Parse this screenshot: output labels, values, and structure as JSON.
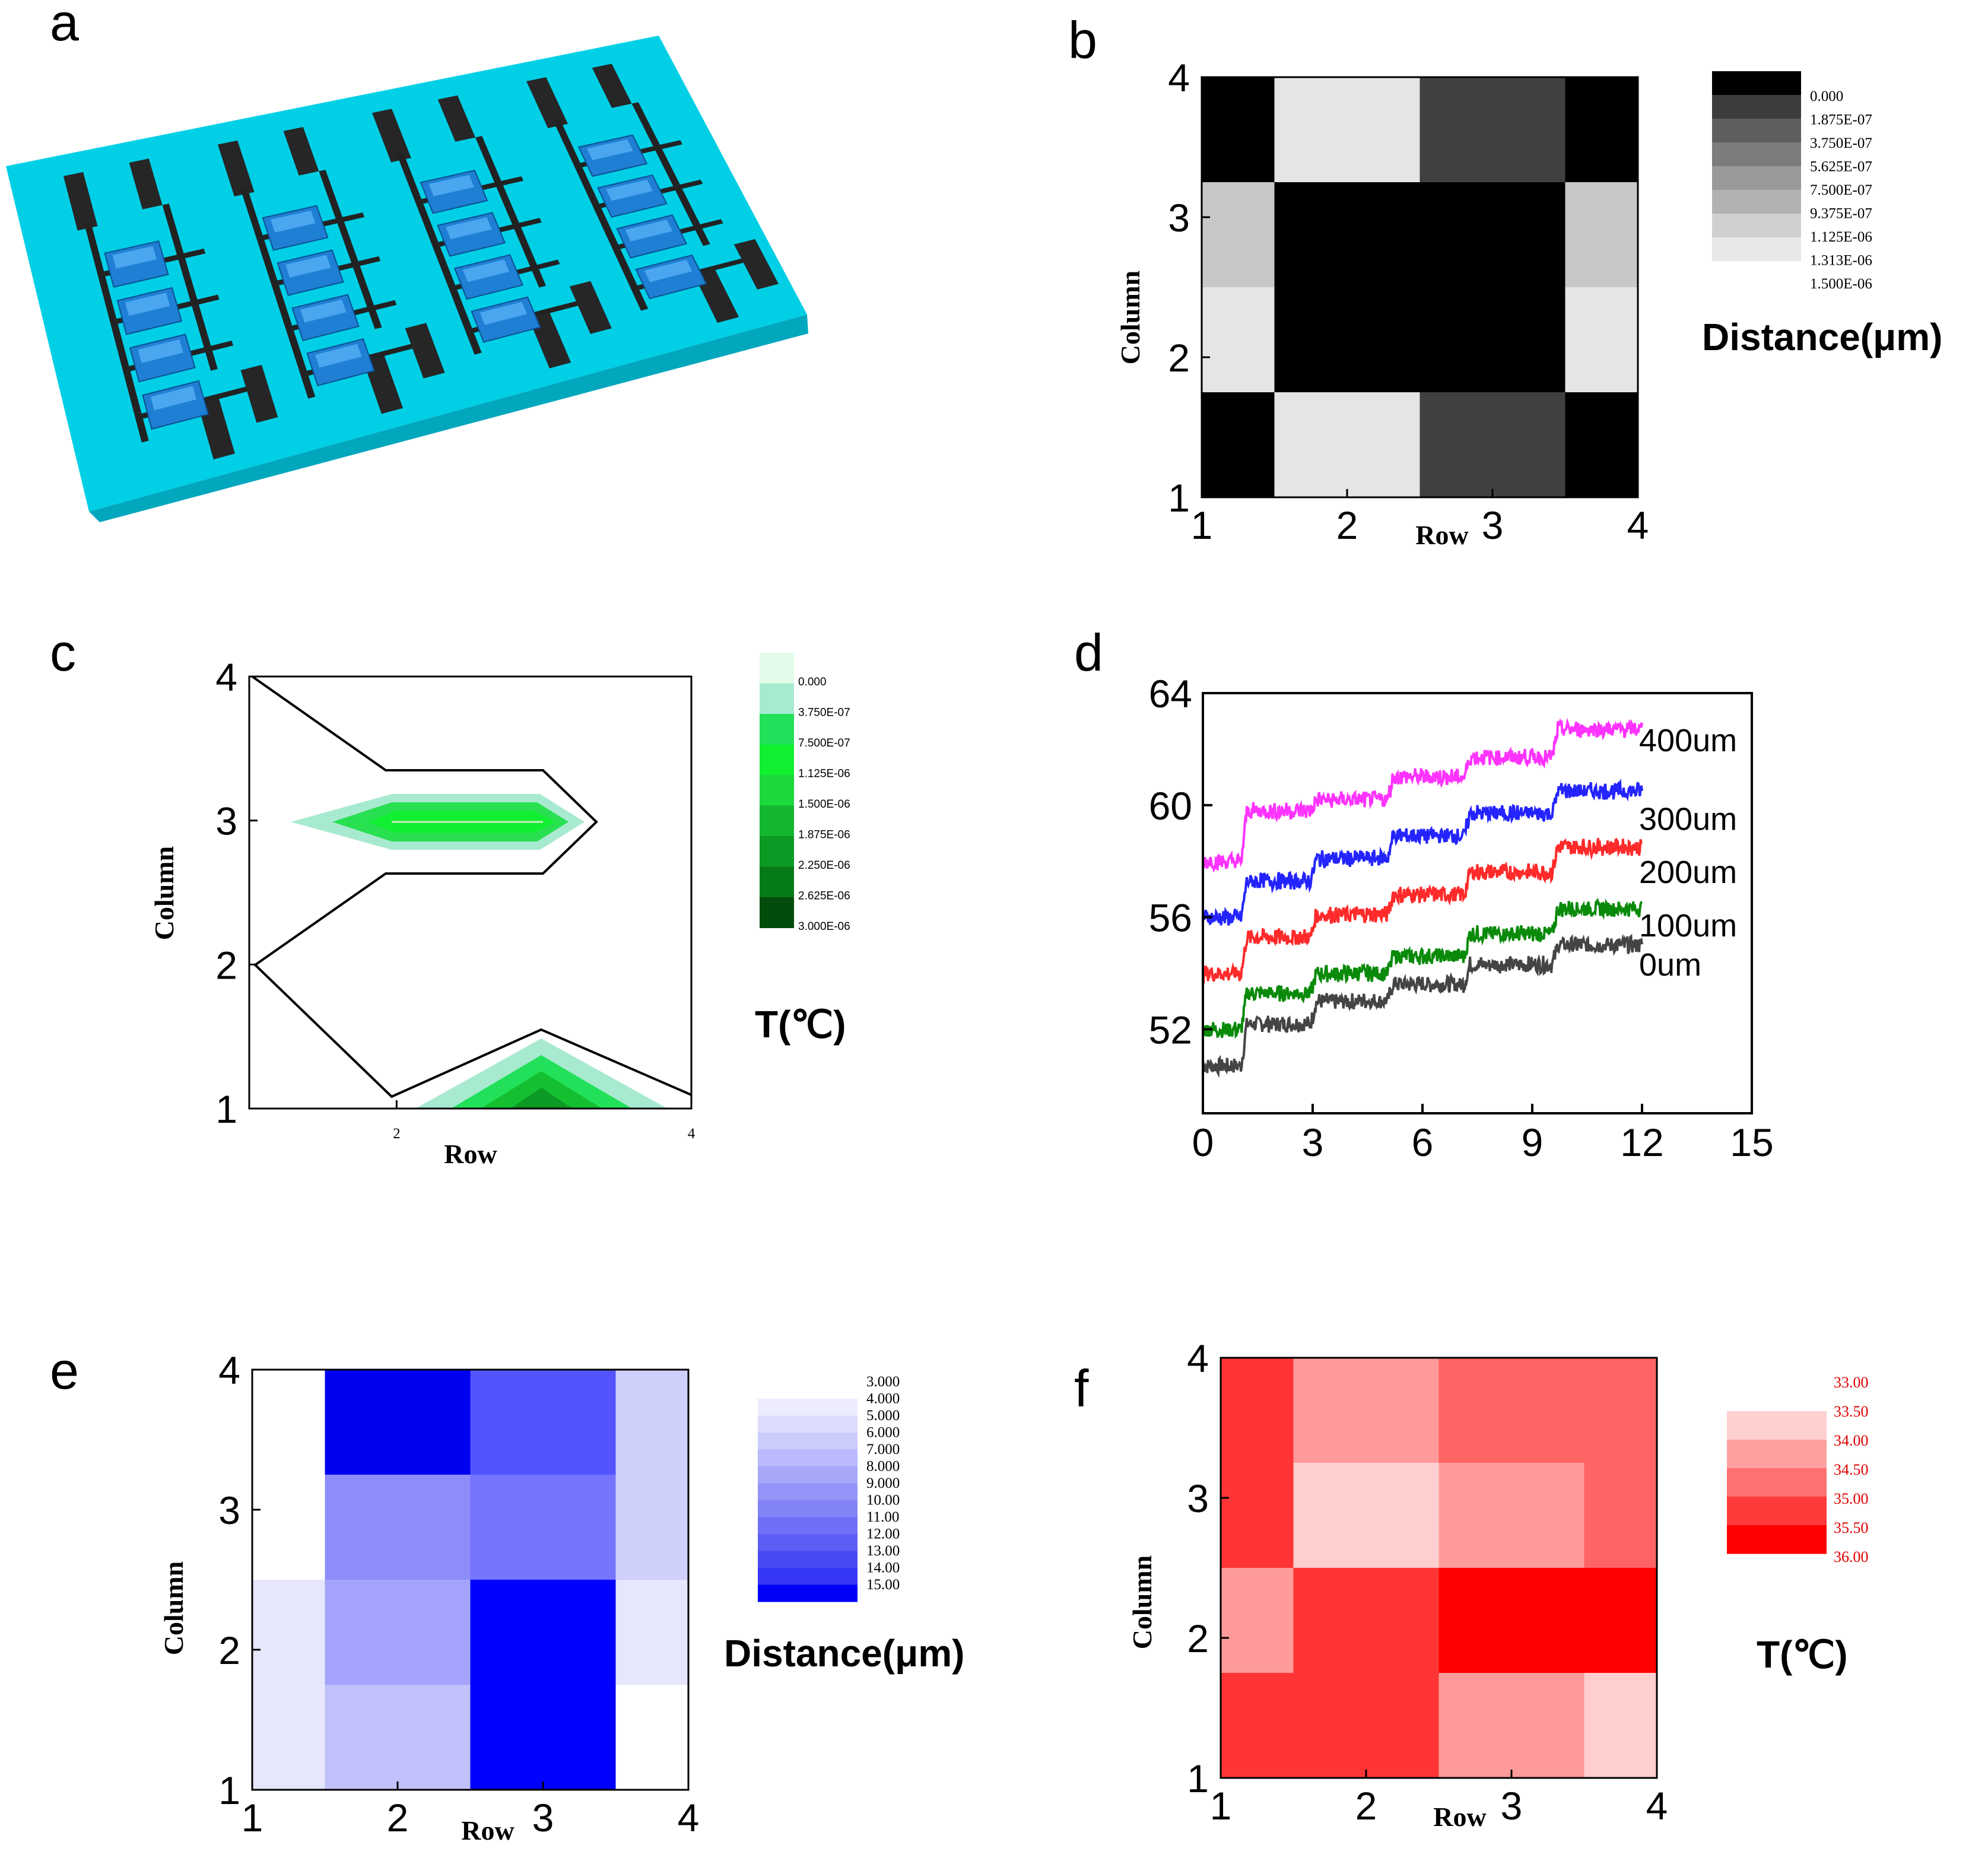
{
  "figure": {
    "panels": [
      "a",
      "b",
      "c",
      "d",
      "e",
      "f"
    ]
  },
  "chart_data": [
    {
      "panel": "a",
      "type": "other",
      "description_title": "",
      "rows": 4,
      "columns": 4,
      "colors": {
        "substrate": "#00cfe6",
        "trace": "#222222",
        "sensor": "#1e7fd4"
      }
    },
    {
      "panel": "b",
      "type": "heatmap",
      "xlabel": "Row",
      "ylabel": "Column",
      "x_ticks": [
        "1",
        "2",
        "3",
        "4"
      ],
      "y_ticks": [
        "1",
        "2",
        "3",
        "4"
      ],
      "colorbar_title": "Distance(μm)",
      "colorbar_labels": [
        "0.000",
        "1.875E-07",
        "3.750E-07",
        "5.625E-07",
        "7.500E-07",
        "9.375E-07",
        "1.125E-06",
        "1.313E-06",
        "1.500E-06"
      ],
      "colorbar_colors": [
        "#000000",
        "#3d3d3d",
        "#5e5e5e",
        "#7c7c7c",
        "#999999",
        "#b2b2b2",
        "#cfcfcf",
        "#e8e8e8"
      ],
      "cells_top_to_bottom": [
        [
          "#000000",
          "#e5e5e5",
          "#404040",
          "#000000"
        ],
        [
          "#c8c8c8",
          "#000000",
          "#000000",
          "#c8c8c8"
        ],
        [
          "#e5e5e5",
          "#000000",
          "#000000",
          "#e5e5e5"
        ],
        [
          "#000000",
          "#e5e5e5",
          "#404040",
          "#000000"
        ]
      ]
    },
    {
      "panel": "c",
      "type": "contour",
      "xlabel": "Row",
      "ylabel": "Column",
      "x_ticks": [
        "2",
        "4"
      ],
      "y_ticks": [
        "1",
        "2",
        "3",
        "4"
      ],
      "colorbar_title": "T(℃)",
      "colorbar_labels": [
        "0.000",
        "3.750E-07",
        "7.500E-07",
        "1.125E-06",
        "1.500E-06",
        "1.875E-06",
        "2.250E-06",
        "2.625E-06",
        "3.000E-06"
      ],
      "colorbar_colors": [
        "#e2fbe8",
        "#a8ead0",
        "#22e05a",
        "#10f030",
        "#1cd83a",
        "#14b830",
        "#0c9a24",
        "#067a18",
        "#024c0c"
      ]
    },
    {
      "panel": "d",
      "type": "line",
      "xlim": [
        0,
        15
      ],
      "ylim": [
        49,
        64
      ],
      "x_ticks": [
        "0",
        "3",
        "6",
        "9",
        "12",
        "15"
      ],
      "y_ticks": [
        "52",
        "56",
        "60",
        "64"
      ],
      "step_times": [
        0,
        1.2,
        3.1,
        5.2,
        7.3,
        9.7,
        12
      ],
      "series": [
        {
          "name": "0um",
          "color": "#444444",
          "levels": [
            50.7,
            52.2,
            53,
            53.6,
            54.3,
            55
          ],
          "label_y": 54.3
        },
        {
          "name": "100um",
          "color": "#0a8a0a",
          "levels": [
            52,
            53.3,
            54,
            54.6,
            55.4,
            56.3
          ],
          "label_y": 55.7
        },
        {
          "name": "200um",
          "color": "#ff2a2a",
          "levels": [
            54,
            55.3,
            56.1,
            56.8,
            57.6,
            58.5
          ],
          "label_y": 57.6
        },
        {
          "name": "300um",
          "color": "#2424ff",
          "levels": [
            56,
            57.3,
            58.1,
            58.9,
            59.7,
            60.5
          ],
          "label_y": 59.5
        },
        {
          "name": "400um",
          "color": "#ff33ff",
          "levels": [
            58,
            59.8,
            60.2,
            61,
            61.7,
            62.7
          ],
          "label_y": 62.3
        }
      ]
    },
    {
      "panel": "e",
      "type": "heatmap",
      "xlabel": "Row",
      "ylabel": "Column",
      "x_ticks": [
        "1",
        "2",
        "3",
        "4"
      ],
      "y_ticks": [
        "1",
        "2",
        "3",
        "4"
      ],
      "colorbar_title": "Distance(μm)",
      "colorbar_labels": [
        "3.000",
        "4.000",
        "5.000",
        "6.000",
        "7.000",
        "8.000",
        "9.000",
        "10.00",
        "11.00",
        "12.00",
        "13.00",
        "14.00",
        "15.00"
      ],
      "colorbar_colors": [
        "#ececfe",
        "#dcdcfd",
        "#cbcbfc",
        "#b9b9fb",
        "#a7a7fa",
        "#9595f9",
        "#8383f8",
        "#7070f7",
        "#5e5ef6",
        "#4a4af5",
        "#3636f5",
        "#0000f8"
      ],
      "cells_top_to_bottom": [
        [
          "#ffffff",
          "#0000f0",
          "#5454ff",
          "#cfcffb"
        ],
        [
          "#ffffff",
          "#8c8cfa",
          "#7474fc",
          "#cfcffb"
        ],
        [
          "#e6e6fc",
          "#a3a3fb",
          "#0000ff",
          "#e6e6fc"
        ],
        [
          "#e6e6fc",
          "#c0c0fb",
          "#0000ff",
          "#ffffff"
        ]
      ]
    },
    {
      "panel": "f",
      "type": "heatmap",
      "xlabel": "Row",
      "ylabel": "Column",
      "x_ticks": [
        "1",
        "2",
        "3",
        "4"
      ],
      "y_ticks": [
        "1",
        "2",
        "3",
        "4"
      ],
      "colorbar_title": "T(℃)",
      "colorbar_labels": [
        "33.00",
        "33.50",
        "34.00",
        "34.50",
        "35.00",
        "35.50",
        "36.00"
      ],
      "colorbar_colors": [
        "#ffd0d0",
        "#ffa0a0",
        "#ff7070",
        "#ff3a3a",
        "#ff0000"
      ],
      "cells_top_to_bottom": [
        [
          "#ff3535",
          "#ff9a9a",
          "#ff6464",
          "#ff6464"
        ],
        [
          "#ff3535",
          "#ffcece",
          "#ff9a9a",
          "#ff6464"
        ],
        [
          "#ff9a9a",
          "#ff3535",
          "#ff0000",
          "#ff0000"
        ],
        [
          "#ff3535",
          "#ff3535",
          "#ff9a9a",
          "#ffcece"
        ]
      ]
    }
  ]
}
